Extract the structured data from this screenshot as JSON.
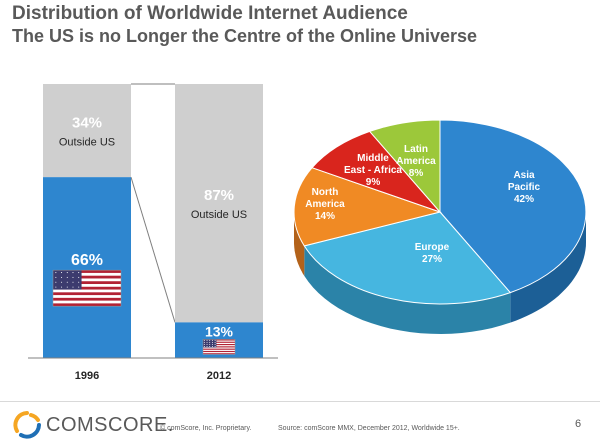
{
  "header": {
    "title": "Distribution of Worldwide Internet Audience",
    "subtitle": "The US is no Longer the Centre of the Online Universe"
  },
  "chart_data": [
    {
      "type": "bar",
      "stacked": true,
      "categories": [
        "1996",
        "2012"
      ],
      "series": [
        {
          "name": "US",
          "values": [
            66,
            13
          ],
          "labels": [
            "66%",
            "13%"
          ],
          "color": "#2e86cf"
        },
        {
          "name": "Outside US",
          "values": [
            34,
            87
          ],
          "labels": [
            "34%",
            "87%"
          ],
          "color": "#cfcfcf"
        }
      ],
      "ylim": [
        0,
        100
      ],
      "grid": false,
      "legend": "none"
    },
    {
      "type": "pie",
      "style": "3d",
      "slices": [
        {
          "label": "Asia Pacific",
          "label_lines": [
            "Asia",
            "Pacific"
          ],
          "value": 42,
          "value_label": "42%",
          "color": "#2e86cf",
          "side_color": "#1c5f96"
        },
        {
          "label": "Europe",
          "label_lines": [
            "Europe"
          ],
          "value": 27,
          "value_label": "27%",
          "color": "#46b6e0",
          "side_color": "#2b83a8"
        },
        {
          "label": "North America",
          "label_lines": [
            "North",
            "America"
          ],
          "value": 14,
          "value_label": "14%",
          "color": "#f08a24",
          "side_color": "#b3621a"
        },
        {
          "label": "Middle East - Africa",
          "label_lines": [
            "Middle",
            "East - Africa"
          ],
          "value": 9,
          "value_label": "9%",
          "color": "#d9251d",
          "side_color": "#9c1a15"
        },
        {
          "label": "Latin America",
          "label_lines": [
            "Latin",
            "America"
          ],
          "value": 8,
          "value_label": "8%",
          "color": "#9cc83a",
          "side_color": "#6f9027"
        }
      ]
    }
  ],
  "colors": {
    "us_bar": "#2e86cf",
    "outside_bar": "#cfcfcf",
    "text_gray": "#595959",
    "logo_orange": "#f5a623",
    "logo_blue": "#1f6fb5"
  },
  "icons": {
    "us": "us-flag-icon",
    "logo": "comscore-logo-icon"
  },
  "footer": {
    "logo_text": "COMSCORE.",
    "copyright": "© comScore, Inc.   Proprietary.",
    "source": "Source: comScore MMX, December 2012, Worldwide 15+.",
    "page": "6"
  }
}
